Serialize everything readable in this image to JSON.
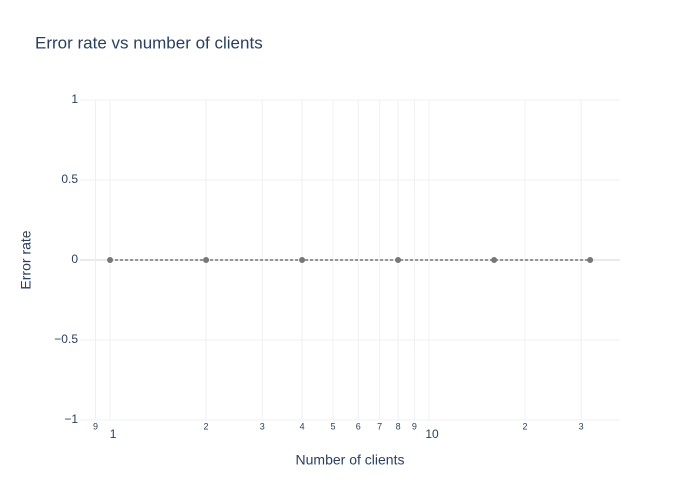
{
  "chart_data": {
    "type": "line",
    "title": "Error rate vs number of clients",
    "x_label": "Number of clients",
    "y_label": "Error rate",
    "x": [
      1,
      2,
      4,
      8,
      16,
      32
    ],
    "series": [
      {
        "name": "Error rate",
        "color": "#777777",
        "values": [
          0,
          0,
          0,
          0,
          0,
          0
        ]
      }
    ],
    "x_log": true,
    "xlim": [
      0.805,
      39.7
    ],
    "xticks": [
      1,
      10
    ],
    "xminorticks": [
      {
        "value": 0.9,
        "label": "9"
      },
      2,
      3,
      4,
      5,
      6,
      7,
      8,
      9,
      {
        "value": 20,
        "label": "2"
      },
      {
        "value": 30,
        "label": "3"
      }
    ],
    "ylim": [
      -1,
      1
    ],
    "yticks": [
      {
        "value": -1,
        "label": "−1"
      },
      {
        "value": -0.5,
        "label": "−0.5"
      },
      0,
      0.5,
      1
    ],
    "grid": true
  }
}
